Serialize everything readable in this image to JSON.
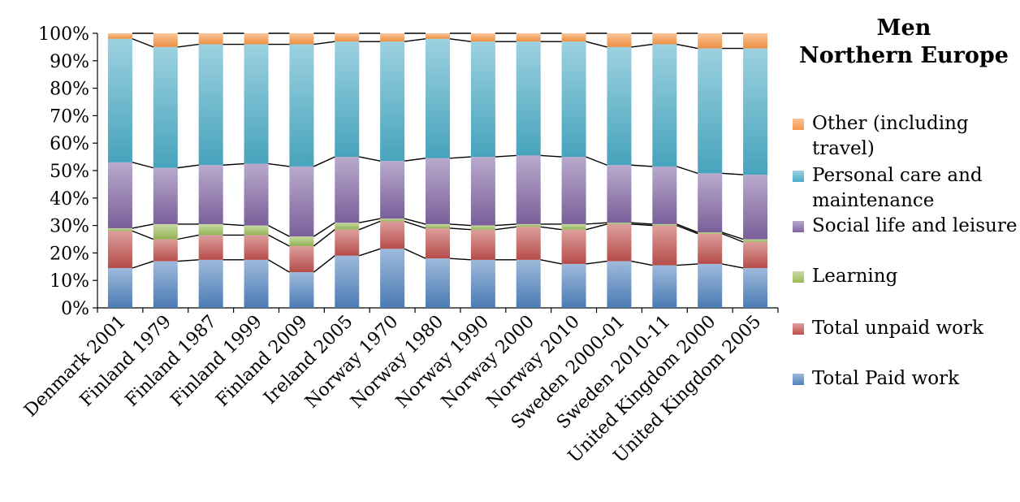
{
  "chart_data": {
    "type": "bar",
    "stacked": true,
    "title": "Men\nNorthern Europe",
    "title_lines": [
      "Men",
      "Northern Europe"
    ],
    "xlabel": "",
    "ylabel": "",
    "ylim": [
      0,
      100
    ],
    "yticks": [
      "0%",
      "10%",
      "20%",
      "30%",
      "40%",
      "50%",
      "60%",
      "70%",
      "80%",
      "90%",
      "100%"
    ],
    "series_lines": true,
    "categories": [
      "Denmark 2001",
      "Finland 1979",
      "Finland 1987",
      "Finland 1999",
      "Finland 2009",
      "Ireland 2005",
      "Norway 1970",
      "Norway 1980",
      "Norway 1990",
      "Norway 2000",
      "Norway 2010",
      "Sweden 2000-01",
      "Sweden 2010-11",
      "United Kingdom 2000",
      "United Kingdom 2005"
    ],
    "series": [
      {
        "name": "Total Paid work",
        "color": "#4f81bd",
        "values": [
          14.5,
          17,
          17.5,
          17.5,
          13,
          19,
          21.5,
          18,
          17.5,
          17.5,
          16,
          17,
          15.5,
          16,
          14.5
        ]
      },
      {
        "name": "Total unpaid work",
        "color": "#c0504d",
        "values": [
          13.5,
          8,
          9,
          9,
          9.5,
          9.5,
          10,
          11,
          11,
          12,
          12.5,
          13.5,
          14.5,
          11,
          9.5
        ]
      },
      {
        "name": "Learning",
        "color": "#9bbb59",
        "values": [
          1,
          5.5,
          4,
          3.5,
          3.5,
          2.5,
          1,
          1.5,
          1.5,
          1,
          2,
          0.5,
          0.5,
          0.5,
          1
        ]
      },
      {
        "name": "Social life and leisure",
        "color": "#8064a2",
        "values": [
          24,
          20.5,
          21.5,
          22.5,
          25.5,
          24,
          21,
          24,
          25,
          25,
          24.5,
          21,
          21,
          21.5,
          23.5
        ]
      },
      {
        "name": "Personal care and maintenance",
        "color": "#4bacc6",
        "values": [
          45,
          44,
          44,
          43.5,
          44.5,
          42,
          43.5,
          43.5,
          42,
          41.5,
          42,
          43,
          44.5,
          45.5,
          46
        ]
      },
      {
        "name": "Other (including travel)",
        "color": "#f79646",
        "values": [
          2,
          5,
          4,
          4,
          4,
          3,
          3,
          2,
          3,
          3,
          3,
          5,
          4,
          5.5,
          5.5
        ]
      }
    ],
    "legend": {
      "placement": "right",
      "items": [
        {
          "label": "Other (including travel)",
          "color": "#f79646"
        },
        {
          "label": "Personal care and maintenance",
          "color": "#4bacc6"
        },
        {
          "label": "Social life and leisure",
          "color": "#8064a2"
        },
        {
          "label": "Learning",
          "color": "#9bbb59"
        },
        {
          "label": "Total unpaid work",
          "color": "#c0504d"
        },
        {
          "label": "Total Paid work",
          "color": "#4f81bd"
        }
      ]
    }
  }
}
